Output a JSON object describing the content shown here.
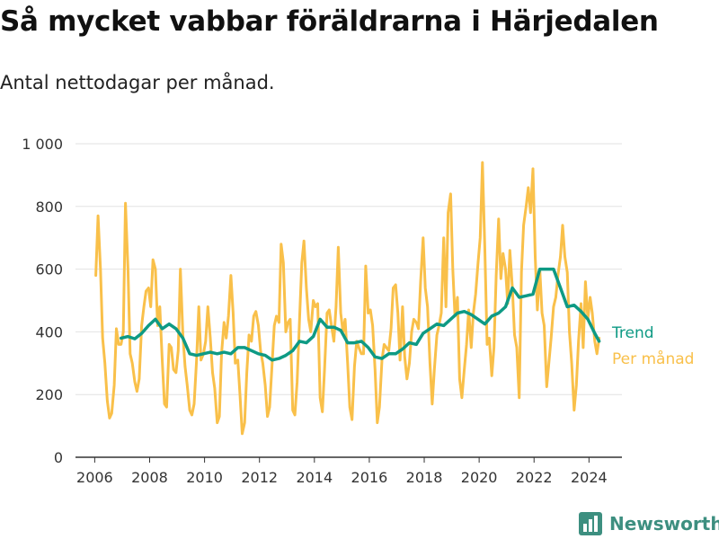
{
  "header": {
    "title": "Så mycket vabbar föräldrarna i Härjedalen",
    "subtitle": "Antal nettodagar per månad."
  },
  "brand": {
    "name": "Newsworthy",
    "color": "#3d8f80",
    "icon": "bar-chart-logo-icon"
  },
  "colors": {
    "trend": "#0e9a84",
    "monthly": "#f9c04a",
    "grid": "#e2e2e2",
    "axis": "#333333"
  },
  "chart_data": {
    "type": "line",
    "title": "Så mycket vabbar föräldrarna i Härjedalen",
    "subtitle": "Antal nettodagar per månad.",
    "xlabel": "",
    "ylabel": "",
    "xlim": [
      2005.3,
      2025.2
    ],
    "ylim": [
      0,
      1000
    ],
    "y_ticks": [
      0,
      200,
      400,
      600,
      800,
      1000
    ],
    "y_tick_labels": [
      "0",
      "200",
      "400",
      "600",
      "800",
      "1 000"
    ],
    "x_ticks": [
      2006,
      2008,
      2010,
      2012,
      2014,
      2016,
      2018,
      2020,
      2022,
      2024
    ],
    "x_tick_labels": [
      "2006",
      "2008",
      "2010",
      "2012",
      "2014",
      "2016",
      "2018",
      "2020",
      "2022",
      "2024"
    ],
    "grid": "horizontal",
    "legend": "right",
    "series": [
      {
        "name": "Per månad",
        "color": "#f9c04a",
        "x": [
          2006.04,
          2006.12,
          2006.21,
          2006.29,
          2006.37,
          2006.46,
          2006.54,
          2006.62,
          2006.71,
          2006.79,
          2006.87,
          2006.96,
          2007.04,
          2007.12,
          2007.21,
          2007.29,
          2007.37,
          2007.46,
          2007.54,
          2007.62,
          2007.71,
          2007.79,
          2007.87,
          2007.96,
          2008.04,
          2008.12,
          2008.21,
          2008.29,
          2008.37,
          2008.46,
          2008.54,
          2008.62,
          2008.71,
          2008.79,
          2008.87,
          2008.96,
          2009.04,
          2009.12,
          2009.21,
          2009.29,
          2009.37,
          2009.46,
          2009.54,
          2009.62,
          2009.71,
          2009.79,
          2009.87,
          2009.96,
          2010.04,
          2010.12,
          2010.21,
          2010.29,
          2010.37,
          2010.46,
          2010.54,
          2010.62,
          2010.71,
          2010.79,
          2010.87,
          2010.96,
          2011.04,
          2011.12,
          2011.21,
          2011.29,
          2011.37,
          2011.46,
          2011.54,
          2011.62,
          2011.71,
          2011.79,
          2011.87,
          2011.96,
          2012.04,
          2012.12,
          2012.21,
          2012.29,
          2012.37,
          2012.46,
          2012.54,
          2012.62,
          2012.71,
          2012.79,
          2012.87,
          2012.96,
          2013.04,
          2013.12,
          2013.21,
          2013.29,
          2013.37,
          2013.46,
          2013.54,
          2013.62,
          2013.71,
          2013.79,
          2013.87,
          2013.96,
          2014.04,
          2014.12,
          2014.21,
          2014.29,
          2014.37,
          2014.46,
          2014.54,
          2014.62,
          2014.71,
          2014.79,
          2014.87,
          2014.96,
          2015.04,
          2015.12,
          2015.21,
          2015.29,
          2015.37,
          2015.46,
          2015.54,
          2015.62,
          2015.71,
          2015.79,
          2015.87,
          2015.96,
          2016.04,
          2016.12,
          2016.21,
          2016.29,
          2016.37,
          2016.46,
          2016.54,
          2016.62,
          2016.71,
          2016.79,
          2016.87,
          2016.96,
          2017.04,
          2017.12,
          2017.21,
          2017.29,
          2017.37,
          2017.46,
          2017.54,
          2017.62,
          2017.71,
          2017.79,
          2017.87,
          2017.96,
          2018.04,
          2018.12,
          2018.21,
          2018.29,
          2018.37,
          2018.46,
          2018.54,
          2018.62,
          2018.71,
          2018.79,
          2018.87,
          2018.96,
          2019.04,
          2019.12,
          2019.21,
          2019.29,
          2019.37,
          2019.46,
          2019.54,
          2019.62,
          2019.71,
          2019.79,
          2019.87,
          2019.96,
          2020.04,
          2020.12,
          2020.21,
          2020.29,
          2020.37,
          2020.46,
          2020.54,
          2020.62,
          2020.71,
          2020.79,
          2020.87,
          2020.96,
          2021.04,
          2021.12,
          2021.21,
          2021.29,
          2021.37,
          2021.46,
          2021.54,
          2021.62,
          2021.71,
          2021.79,
          2021.87,
          2021.96,
          2022.04,
          2022.12,
          2022.21,
          2022.29,
          2022.37,
          2022.46,
          2022.54,
          2022.62,
          2022.71,
          2022.79,
          2022.87,
          2022.96,
          2023.04,
          2023.12,
          2023.21,
          2023.29,
          2023.37,
          2023.46,
          2023.54,
          2023.62,
          2023.71,
          2023.79,
          2023.87,
          2023.96,
          2024.04,
          2024.12,
          2024.21,
          2024.29,
          2024.37
        ],
        "values": [
          580,
          770,
          600,
          380,
          300,
          180,
          125,
          140,
          230,
          410,
          360,
          360,
          400,
          810,
          600,
          330,
          300,
          240,
          210,
          250,
          420,
          480,
          530,
          540,
          480,
          630,
          600,
          420,
          480,
          310,
          170,
          160,
          360,
          350,
          280,
          270,
          340,
          600,
          390,
          290,
          230,
          150,
          135,
          170,
          310,
          480,
          310,
          330,
          370,
          480,
          380,
          270,
          220,
          110,
          130,
          330,
          430,
          380,
          450,
          580,
          460,
          300,
          310,
          200,
          75,
          110,
          270,
          390,
          370,
          450,
          465,
          420,
          340,
          300,
          230,
          130,
          160,
          300,
          420,
          450,
          430,
          680,
          620,
          400,
          430,
          440,
          150,
          135,
          240,
          440,
          620,
          690,
          540,
          440,
          400,
          500,
          480,
          490,
          190,
          145,
          280,
          460,
          470,
          420,
          370,
          480,
          670,
          460,
          400,
          440,
          300,
          160,
          120,
          290,
          370,
          350,
          330,
          330,
          610,
          460,
          470,
          420,
          280,
          110,
          160,
          310,
          360,
          350,
          340,
          410,
          540,
          550,
          460,
          310,
          480,
          320,
          250,
          300,
          400,
          440,
          430,
          410,
          560,
          700,
          540,
          480,
          300,
          170,
          280,
          390,
          420,
          460,
          700,
          480,
          780,
          840,
          600,
          450,
          510,
          250,
          190,
          280,
          360,
          470,
          350,
          460,
          520,
          620,
          700,
          940,
          660,
          360,
          380,
          260,
          350,
          580,
          760,
          570,
          650,
          600,
          490,
          660,
          540,
          390,
          350,
          190,
          590,
          740,
          800,
          860,
          780,
          920,
          640,
          470,
          600,
          460,
          420,
          225,
          300,
          380,
          480,
          510,
          580,
          640,
          740,
          640,
          590,
          400,
          300,
          150,
          230,
          370,
          490,
          350,
          560,
          440,
          510,
          460,
          370,
          330,
          380
        ]
      },
      {
        "name": "Trend",
        "color": "#0e9a84",
        "x": [
          2006.96,
          2007.21,
          2007.46,
          2007.71,
          2007.96,
          2008.21,
          2008.46,
          2008.71,
          2008.96,
          2009.21,
          2009.46,
          2009.71,
          2009.96,
          2010.21,
          2010.46,
          2010.71,
          2010.96,
          2011.21,
          2011.46,
          2011.71,
          2011.96,
          2012.21,
          2012.46,
          2012.71,
          2012.96,
          2013.21,
          2013.46,
          2013.71,
          2013.96,
          2014.21,
          2014.46,
          2014.71,
          2014.96,
          2015.21,
          2015.46,
          2015.71,
          2015.96,
          2016.21,
          2016.46,
          2016.71,
          2016.96,
          2017.21,
          2017.46,
          2017.71,
          2017.96,
          2018.21,
          2018.46,
          2018.71,
          2018.96,
          2019.21,
          2019.46,
          2019.71,
          2019.96,
          2020.21,
          2020.46,
          2020.71,
          2020.96,
          2021.21,
          2021.46,
          2021.71,
          2021.96,
          2022.21,
          2022.46,
          2022.71,
          2022.96,
          2023.21,
          2023.46,
          2023.71,
          2023.96,
          2024.21,
          2024.37
        ],
        "values": [
          380,
          385,
          378,
          395,
          420,
          440,
          410,
          425,
          410,
          380,
          330,
          325,
          330,
          335,
          330,
          335,
          330,
          350,
          350,
          340,
          330,
          325,
          310,
          315,
          325,
          340,
          370,
          365,
          385,
          440,
          415,
          415,
          405,
          365,
          365,
          370,
          350,
          320,
          315,
          330,
          330,
          345,
          365,
          360,
          395,
          410,
          425,
          420,
          440,
          460,
          465,
          455,
          440,
          425,
          450,
          460,
          480,
          540,
          510,
          515,
          520,
          600,
          600,
          600,
          540,
          480,
          485,
          465,
          440,
          395,
          370
        ]
      }
    ]
  }
}
